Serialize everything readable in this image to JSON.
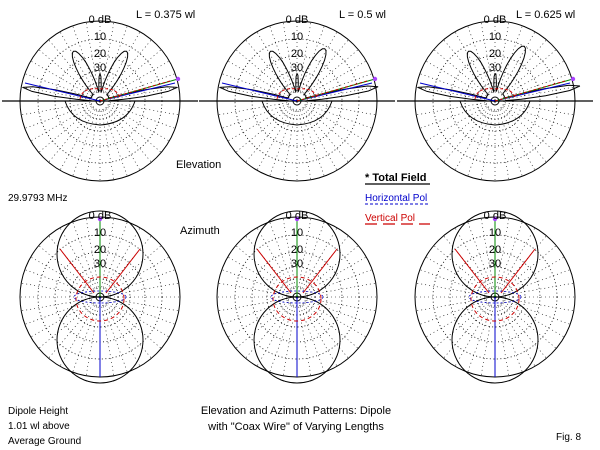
{
  "figure": {
    "caption_line1": "Elevation and Azimuth Patterns: Dipole",
    "caption_line2": "with \"Coax Wire\" of Varying Lengths",
    "fig_label": "Fig. 8",
    "frequency": "29.9793 MHz",
    "height_lines": [
      "Dipole Height",
      "1.01 wl above",
      "Average Ground"
    ],
    "elevation_label": "Elevation",
    "azimuth_label": "Azimuth"
  },
  "legend": {
    "total": "* Total Field",
    "horizontal": "Horizontal Pol",
    "vertical": "Vertical Pol"
  },
  "colors": {
    "total": "#000000",
    "horizontal": "#0000cc",
    "vertical": "#cc0000",
    "max_ray": "#008800",
    "grid": "#000000"
  },
  "ring_labels": [
    "0 dB",
    "10",
    "20",
    "30"
  ],
  "columns": [
    {
      "length_label": "L = 0.375 wl"
    },
    {
      "length_label": "L = 0.5 wl"
    },
    {
      "length_label": "L = 0.625 wl"
    }
  ]
}
